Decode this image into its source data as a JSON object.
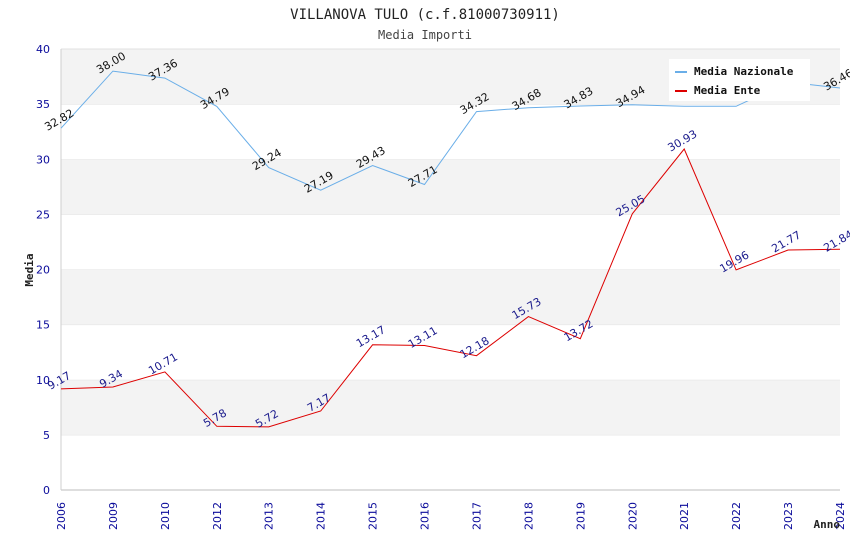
{
  "chart_data": {
    "type": "line",
    "title": "VILLANOVA TULO (c.f.81000730911)",
    "subtitle": "Media Importi",
    "xlabel": "Anno",
    "ylabel": "Media",
    "ylim": [
      0,
      40
    ],
    "yticks": [
      0,
      5,
      10,
      15,
      20,
      25,
      30,
      35,
      40
    ],
    "grid": "horizontal alternating bands",
    "legend_position": "top-right",
    "categories": [
      "2006",
      "2009",
      "2010",
      "2012",
      "2013",
      "2014",
      "2015",
      "2016",
      "2017",
      "2018",
      "2019",
      "2020",
      "2021",
      "2022",
      "2023",
      "2024"
    ],
    "series": [
      {
        "name": "Media Nazionale",
        "color": "#6aaee8",
        "values": [
          32.82,
          38.0,
          37.36,
          34.79,
          29.24,
          27.19,
          29.43,
          27.71,
          34.32,
          34.68,
          34.83,
          34.94,
          34.8,
          34.8,
          37.0,
          36.46
        ],
        "labels": [
          "32.82",
          "38.00",
          "37.36",
          "34.79",
          "29.24",
          "27.19",
          "29.43",
          "27.71",
          "34.32",
          "34.68",
          "34.83",
          "34.94",
          "",
          "",
          "",
          "36.46"
        ]
      },
      {
        "name": "Media Ente",
        "color": "#dd0000",
        "values": [
          9.17,
          9.34,
          10.71,
          5.78,
          5.72,
          7.17,
          13.17,
          13.11,
          12.18,
          15.73,
          13.72,
          25.05,
          30.93,
          19.96,
          21.77,
          21.84
        ],
        "labels": [
          "9.17",
          "9.34",
          "10.71",
          "5.78",
          "5.72",
          "7.17",
          "13.17",
          "13.11",
          "12.18",
          "15.73",
          "13.72",
          "25.05",
          "30.93",
          "19.96",
          "21.77",
          "21.84"
        ]
      }
    ]
  }
}
